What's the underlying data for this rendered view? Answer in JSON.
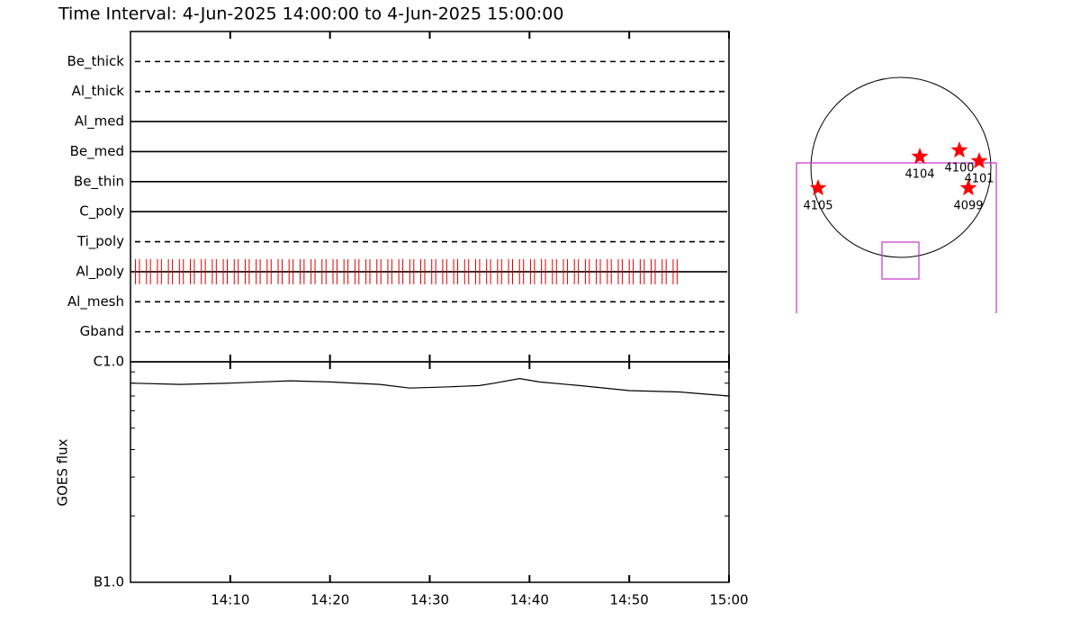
{
  "title": "Time Interval:  4-Jun-2025 14:00:00 to  4-Jun-2025 15:00:00",
  "chart_data": [
    {
      "type": "timeline",
      "categories": [
        "Be_thick",
        "Al_thick",
        "Al_med",
        "Be_med",
        "Be_thin",
        "C_poly",
        "Ti_poly",
        "Al_poly",
        "Al_mesh",
        "Gband"
      ],
      "line_styles": [
        "dashed",
        "dashed",
        "solid",
        "solid",
        "solid",
        "solid",
        "dashed",
        "solid",
        "dashed",
        "dashed"
      ],
      "series": [
        {
          "category": "Al_poly",
          "color": "#e00000",
          "x": [
            0.5,
            0.9,
            1.6,
            2.0,
            2.7,
            3.1,
            3.8,
            4.2,
            4.9,
            5.3,
            6.0,
            6.4,
            7.1,
            7.5,
            8.2,
            8.6,
            9.3,
            9.7,
            10.4,
            10.8,
            11.5,
            11.9,
            12.6,
            13.0,
            13.7,
            14.1,
            14.8,
            15.2,
            15.9,
            16.3,
            17.0,
            17.4,
            18.1,
            18.5,
            19.2,
            19.6,
            20.3,
            20.7,
            21.4,
            21.8,
            22.5,
            22.9,
            23.6,
            24.0,
            24.7,
            25.1,
            25.8,
            26.2,
            26.9,
            27.3,
            28.0,
            28.4,
            29.1,
            29.5,
            30.2,
            30.6,
            31.3,
            31.7,
            32.4,
            32.8,
            33.5,
            33.9,
            34.6,
            35.0,
            35.7,
            36.1,
            36.8,
            37.2,
            37.9,
            38.3,
            39.0,
            39.4,
            40.1,
            40.5,
            41.2,
            41.6,
            42.3,
            42.7,
            43.4,
            43.8,
            44.5,
            44.9,
            45.6,
            46.0,
            46.7,
            47.1,
            47.8,
            48.2,
            48.9,
            49.3,
            50.0,
            50.4,
            51.1,
            51.5,
            52.2,
            52.6,
            53.3,
            53.7,
            54.4,
            54.8
          ]
        }
      ],
      "xlim": [
        0,
        60
      ],
      "xticks": [
        10,
        20,
        30,
        40,
        50,
        60
      ]
    },
    {
      "type": "line",
      "ylabel": "GOES flux",
      "x": [
        0,
        5,
        10,
        16,
        20,
        25,
        28,
        32,
        35,
        36.5,
        39,
        41,
        45,
        50,
        55,
        60
      ],
      "values": [
        8e-07,
        7.9e-07,
        8e-07,
        8.2e-07,
        8.1e-07,
        7.9e-07,
        7.6e-07,
        7.7e-07,
        7.8e-07,
        8e-07,
        8.4e-07,
        8.1e-07,
        7.8e-07,
        7.4e-07,
        7.3e-07,
        7e-07
      ],
      "color": "#000000",
      "log_scale": true,
      "ylim": [
        1e-07,
        1e-06
      ],
      "yticks": [
        {
          "value": 1e-07,
          "label": "B1.0"
        },
        {
          "value": 1e-06,
          "label": "C1.0"
        }
      ],
      "minor_yticks": [
        2e-07,
        3e-07,
        4e-07,
        5e-07,
        6e-07,
        7e-07,
        8e-07,
        9e-07
      ],
      "xlim": [
        0,
        60
      ],
      "xticks": [
        {
          "value": 10,
          "label": "14:10"
        },
        {
          "value": 20,
          "label": "14:20"
        },
        {
          "value": 30,
          "label": "14:30"
        },
        {
          "value": 40,
          "label": "14:40"
        },
        {
          "value": 50,
          "label": "14:50"
        },
        {
          "value": 60,
          "label": "15:00"
        }
      ]
    }
  ],
  "map": {
    "active_regions": [
      "4105",
      "4104",
      "4100",
      "4101",
      "4099"
    ],
    "star_color": "#ff0000",
    "fov_color": "#cc33cc"
  }
}
